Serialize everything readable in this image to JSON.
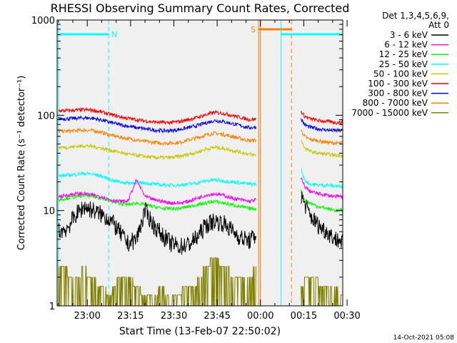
{
  "chart_data": {
    "type": "line",
    "title": "RHESSI Observing Summary Count Rates, Corrected",
    "xlabel": "Start Time (13-Feb-07 22:50:02)",
    "ylabel": "Corrected Count Rate (s⁻¹ detector⁻¹)",
    "y_scale": "log",
    "ylim": [
      1,
      1000
    ],
    "xlim": [
      -0.008,
      1.641
    ],
    "x_units": "hours after 13-Feb-07 22:50:02",
    "x_ticks": [
      {
        "value": 0.166,
        "label": "23:00"
      },
      {
        "value": 0.416,
        "label": "23:15"
      },
      {
        "value": 0.666,
        "label": "23:30"
      },
      {
        "value": 0.916,
        "label": "23:45"
      },
      {
        "value": 1.166,
        "label": "00:00"
      },
      {
        "value": 1.416,
        "label": "00:15"
      },
      {
        "value": 1.666,
        "label": "00:30"
      }
    ],
    "y_ticks": [
      {
        "value": 1,
        "label": "1"
      },
      {
        "value": 10,
        "label": "10"
      },
      {
        "value": 100,
        "label": "100"
      },
      {
        "value": 1000,
        "label": "1000"
      }
    ],
    "legend": {
      "header": [
        "Det 1,3,4,5,6,9,",
        "Att 0"
      ],
      "placement": "right"
    },
    "series": [
      {
        "name": "3 - 6 keV",
        "color": "#000000",
        "segments": [
          {
            "x": [
              0.0,
              0.05,
              0.1,
              0.15,
              0.2,
              0.25,
              0.3,
              0.35,
              0.4,
              0.45,
              0.5,
              0.55,
              0.6,
              0.65,
              0.7,
              0.75,
              0.8,
              0.85,
              0.9,
              0.95,
              1.0,
              1.05,
              1.1,
              1.14
            ],
            "y": [
              6,
              6.5,
              9,
              11,
              10,
              9,
              8,
              6,
              4.5,
              5,
              10,
              7,
              5.5,
              4.5,
              4.2,
              4.4,
              5.2,
              7,
              7.8,
              7.4,
              6.2,
              5.2,
              4.8,
              5.5
            ]
          },
          {
            "x": [
              1.4,
              1.42,
              1.45,
              1.5,
              1.55,
              1.6,
              1.64
            ],
            "y": [
              14,
              12,
              9,
              7,
              6,
              5,
              4.8
            ]
          }
        ]
      },
      {
        "name": "6 - 12 keV",
        "color": "#ff00ff",
        "segments": [
          {
            "x": [
              0.0,
              0.05,
              0.1,
              0.15,
              0.2,
              0.25,
              0.3,
              0.35,
              0.4,
              0.45,
              0.5,
              0.55,
              0.6,
              0.65,
              0.7,
              0.75,
              0.8,
              0.85,
              0.9,
              0.95,
              1.0,
              1.05,
              1.1,
              1.14
            ],
            "y": [
              14,
              14.5,
              15,
              15,
              14.5,
              14,
              13,
              12.5,
              12.5,
              21,
              14,
              13,
              12.5,
              12,
              12,
              12.5,
              13.5,
              14.5,
              15,
              14.5,
              13.5,
              13,
              12.5,
              13
            ]
          },
          {
            "x": [
              1.4,
              1.42,
              1.45,
              1.5,
              1.55,
              1.6,
              1.64
            ],
            "y": [
              22,
              18,
              16,
              15,
              14.5,
              14,
              14
            ]
          }
        ]
      },
      {
        "name": "12 - 25 keV",
        "color": "#00ff00",
        "segments": [
          {
            "x": [
              0.0,
              0.05,
              0.1,
              0.15,
              0.2,
              0.25,
              0.3,
              0.35,
              0.4,
              0.45,
              0.5,
              0.55,
              0.6,
              0.65,
              0.7,
              0.75,
              0.8,
              0.85,
              0.9,
              0.95,
              1.0,
              1.05,
              1.1,
              1.14
            ],
            "y": [
              13,
              13.5,
              14,
              14.5,
              14,
              13.5,
              12.5,
              12,
              11.5,
              12,
              11.5,
              11,
              10.5,
              10.5,
              10.5,
              11,
              11.5,
              12,
              12.5,
              12,
              11.5,
              11,
              10.5,
              10.5
            ]
          },
          {
            "x": [
              1.4,
              1.42,
              1.45,
              1.5,
              1.55,
              1.6,
              1.64
            ],
            "y": [
              16,
              13,
              12,
              11,
              10.5,
              10,
              10
            ]
          }
        ]
      },
      {
        "name": "25 - 50 keV",
        "color": "#00ffff",
        "segments": [
          {
            "x": [
              0.0,
              0.05,
              0.1,
              0.15,
              0.2,
              0.25,
              0.3,
              0.35,
              0.4,
              0.45,
              0.5,
              0.55,
              0.6,
              0.65,
              0.7,
              0.75,
              0.8,
              0.85,
              0.9,
              0.95,
              1.0,
              1.05,
              1.1,
              1.14
            ],
            "y": [
              23,
              23.5,
              24,
              24.5,
              24,
              23,
              21,
              20,
              19.5,
              19.5,
              19.5,
              19,
              18.5,
              18.5,
              18.5,
              19,
              19.5,
              20.5,
              21,
              20.5,
              20,
              19.5,
              19,
              19
            ]
          },
          {
            "x": [
              1.4,
              1.42,
              1.45,
              1.5,
              1.55,
              1.6,
              1.64
            ],
            "y": [
              27,
              21,
              19,
              18.5,
              18.5,
              18,
              18
            ]
          }
        ]
      },
      {
        "name": "50 - 100 keV",
        "color": "#c8c800",
        "segments": [
          {
            "x": [
              0.0,
              0.05,
              0.1,
              0.15,
              0.2,
              0.25,
              0.3,
              0.35,
              0.4,
              0.45,
              0.5,
              0.55,
              0.6,
              0.65,
              0.7,
              0.75,
              0.8,
              0.85,
              0.9,
              0.95,
              1.0,
              1.05,
              1.1,
              1.14
            ],
            "y": [
              46,
              46,
              47,
              48,
              47,
              45,
              43,
              41,
              39,
              38,
              37,
              36,
              36,
              36,
              37,
              39,
              41,
              44,
              46,
              45,
              43,
              41,
              39,
              38
            ]
          },
          {
            "x": [
              1.4,
              1.42,
              1.45,
              1.5,
              1.55,
              1.6,
              1.64
            ],
            "y": [
              55,
              46,
              42,
              40,
              39,
              38,
              38
            ]
          }
        ]
      },
      {
        "name": "100 - 300 keV",
        "color": "#ff0000",
        "segments": [
          {
            "x": [
              0.0,
              0.05,
              0.1,
              0.15,
              0.2,
              0.25,
              0.3,
              0.35,
              0.4,
              0.45,
              0.5,
              0.55,
              0.6,
              0.65,
              0.7,
              0.75,
              0.8,
              0.85,
              0.9,
              0.95,
              1.0,
              1.05,
              1.1,
              1.14
            ],
            "y": [
              112,
              112,
              113,
              114,
              113,
              108,
              102,
              97,
              93,
              90,
              87,
              85,
              84,
              84,
              86,
              90,
              95,
              101,
              107,
              105,
              100,
              95,
              90,
              91
            ]
          },
          {
            "x": [
              1.4,
              1.42,
              1.45,
              1.5,
              1.55,
              1.6,
              1.64
            ],
            "y": [
              110,
              98,
              92,
              88,
              86,
              84,
              84
            ]
          }
        ]
      },
      {
        "name": "300 - 800 keV",
        "color": "#0000ff",
        "segments": [
          {
            "x": [
              0.0,
              0.05,
              0.1,
              0.15,
              0.2,
              0.25,
              0.3,
              0.35,
              0.4,
              0.45,
              0.5,
              0.55,
              0.6,
              0.65,
              0.7,
              0.75,
              0.8,
              0.85,
              0.9,
              0.95,
              1.0,
              1.05,
              1.1,
              1.14
            ],
            "y": [
              92,
              92,
              93,
              94,
              93,
              89,
              84,
              80,
              77,
              74,
              72,
              70,
              69,
              69,
              71,
              74,
              78,
              83,
              88,
              86,
              82,
              78,
              74,
              75
            ]
          },
          {
            "x": [
              1.4,
              1.42,
              1.45,
              1.5,
              1.55,
              1.6,
              1.64
            ],
            "y": [
              92,
              80,
              75,
              72,
              70,
              69,
              69
            ]
          }
        ]
      },
      {
        "name": "800 - 7000 keV",
        "color": "#ff8000",
        "segments": [
          {
            "x": [
              0.0,
              0.05,
              0.1,
              0.15,
              0.2,
              0.25,
              0.3,
              0.35,
              0.4,
              0.45,
              0.5,
              0.55,
              0.6,
              0.65,
              0.7,
              0.75,
              0.8,
              0.85,
              0.9,
              0.95,
              1.0,
              1.05,
              1.1,
              1.14
            ],
            "y": [
              68,
              68,
              69,
              70,
              69,
              66,
              62,
              59,
              57,
              55,
              53,
              52,
              51,
              51,
              52,
              55,
              58,
              62,
              65,
              63,
              60,
              57,
              54,
              55
            ]
          },
          {
            "x": [
              1.4,
              1.42,
              1.45,
              1.5,
              1.55,
              1.6,
              1.64
            ],
            "y": [
              70,
              60,
              56,
              54,
              52,
              51,
              51
            ]
          }
        ]
      },
      {
        "name": "7000 - 15000 keV",
        "color": "#808000",
        "segments": [
          {
            "x": [
              0.0,
              0.05,
              0.1,
              0.15,
              0.2,
              0.25,
              0.3,
              0.35,
              0.4,
              0.45,
              0.5,
              0.55,
              0.6,
              0.65,
              0.7,
              0.75,
              0.8,
              0.85,
              0.9,
              0.95,
              1.0,
              1.05,
              1.1,
              1.14
            ],
            "y": [
              2.5,
              2.3,
              2.2,
              2.4,
              2.0,
              1.6,
              1.3,
              2.3,
              2.1,
              1.6,
              1.3,
              1.4,
              1.5,
              1.3,
              1.4,
              1.6,
              1.8,
              2.6,
              3.2,
              2.6,
              2.2,
              1.9,
              2.2,
              2.4
            ]
          },
          {
            "x": [
              1.4,
              1.42,
              1.45,
              1.5,
              1.55,
              1.6,
              1.64
            ],
            "y": [
              1.6,
              1.9,
              2.0,
              1.8,
              1.6,
              1.5,
              1.4
            ]
          }
        ]
      }
    ],
    "annotations": [
      {
        "label": "N",
        "kind": "night",
        "color": "#00ffff",
        "x_start": 0.0,
        "x_end": 0.29
      },
      {
        "label": "",
        "kind": "night",
        "color": "#00ffff",
        "x_start": 1.285,
        "x_end": 1.641
      },
      {
        "label": "S",
        "kind": "saa",
        "color": "#ff8000",
        "x_start": 1.155,
        "x_end": 1.345
      }
    ],
    "notes": [
      {
        "kind": "vline",
        "x": 1.155,
        "color": "#ff8000",
        "style": "solid"
      },
      {
        "kind": "vline",
        "x": 1.165,
        "color": "#ff8000",
        "style": "solid"
      },
      {
        "kind": "vline",
        "x": 1.345,
        "color": "#ff8000",
        "style": "dashed"
      },
      {
        "kind": "vline",
        "x": 1.285,
        "color": "#00ffff",
        "style": "solid"
      },
      {
        "kind": "vline",
        "x": 0.29,
        "color": "#00ffff",
        "style": "dashed"
      },
      {
        "kind": "vline",
        "x": 1.641,
        "color": "#00ffff",
        "style": "dashed"
      },
      {
        "kind": "vline",
        "x": 0.0,
        "color": "#00ffff",
        "style": "solid"
      }
    ],
    "footer_date": "14-Oct-2021 05:08"
  }
}
